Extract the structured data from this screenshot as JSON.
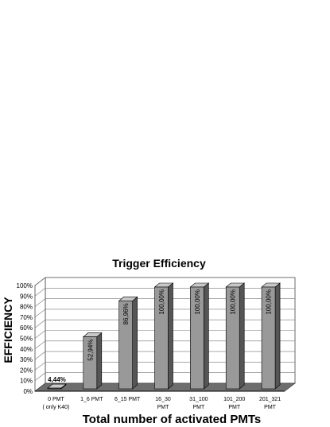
{
  "chart_data": {
    "type": "bar",
    "title": "Trigger Efficiency",
    "xlabel": "Total number of activated PMTs",
    "ylabel": "EFFICIENCY",
    "ylim": [
      0,
      100
    ],
    "grid": true,
    "legend": "none",
    "yticks": [
      "0%",
      "10%",
      "20%",
      "30%",
      "40%",
      "50%",
      "60%",
      "70%",
      "80%",
      "90%",
      "100%"
    ],
    "categories": [
      [
        "0 PMT",
        "( only K40)"
      ],
      [
        "1_6 PMT"
      ],
      [
        "6_15 PMT"
      ],
      [
        "16_30",
        "PMT"
      ],
      [
        "31_100",
        "PMT"
      ],
      [
        "101_200",
        "PMT"
      ],
      [
        "201_321",
        "PMT"
      ]
    ],
    "values": [
      4.44,
      52.94,
      86.96,
      100,
      100,
      100,
      100
    ],
    "value_labels": [
      "4,44%",
      "52,94%",
      "86,96%",
      "100,00%",
      "100,00%",
      "100,00%",
      "100,00%"
    ],
    "colors": {
      "bar_front": "#999999",
      "bar_top": "#c8c8c8",
      "bar_side": "#555555",
      "floor": "#6e6e6e"
    }
  }
}
